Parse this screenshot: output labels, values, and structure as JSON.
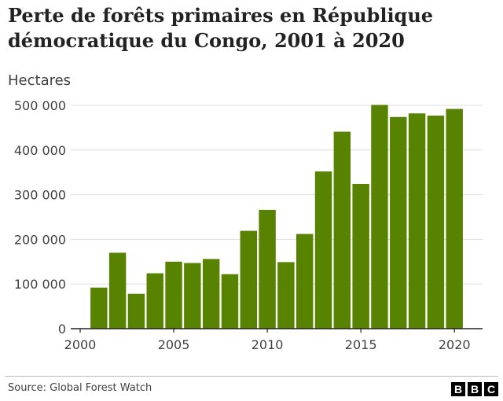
{
  "brand": {
    "logo_letters": [
      "B",
      "B",
      "C"
    ],
    "bar_color": "#588300",
    "axis_color": "#222222",
    "grid_color": "#dddddd"
  },
  "source": "Source: Global Forest Watch",
  "chart_data": {
    "type": "bar",
    "title": "Perte de forêts primaires en République démocratique du Congo, 2001 à 2020",
    "ylabel": "Hectares",
    "xlabel": "",
    "x": [
      2001,
      2002,
      2003,
      2004,
      2005,
      2006,
      2007,
      2008,
      2009,
      2010,
      2011,
      2012,
      2013,
      2014,
      2015,
      2016,
      2017,
      2018,
      2019,
      2020
    ],
    "values": [
      92000,
      170000,
      78000,
      124000,
      150000,
      147000,
      156000,
      122000,
      219000,
      266000,
      149000,
      212000,
      352000,
      441000,
      324000,
      501000,
      474000,
      482000,
      477000,
      492000
    ],
    "x_ticks": [
      2000,
      2005,
      2010,
      2015,
      2020
    ],
    "x_tick_labels": [
      "2000",
      "2005",
      "2010",
      "2015",
      "2020"
    ],
    "y_ticks": [
      0,
      100000,
      200000,
      300000,
      400000,
      500000
    ],
    "y_tick_labels": [
      "0",
      "100 000",
      "200 000",
      "300 000",
      "400 000",
      "500 000"
    ],
    "ylim": [
      0,
      500000
    ],
    "xlim": [
      2000,
      2021
    ],
    "grid": true,
    "legend": "none"
  }
}
